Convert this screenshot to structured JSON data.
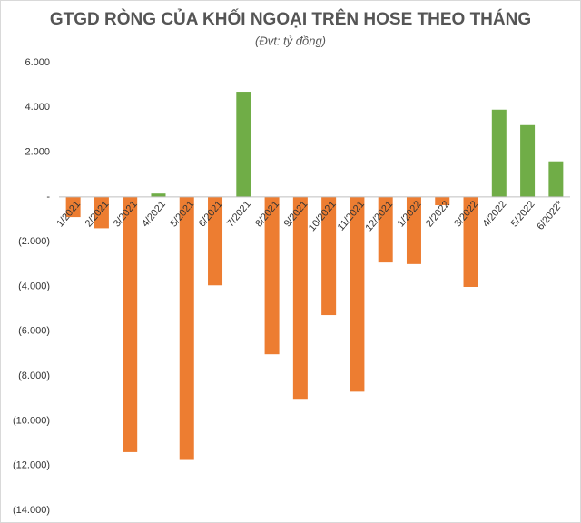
{
  "chart_data": {
    "type": "bar",
    "title": "GTGD RÒNG CỦA KHỐI NGOẠI TRÊN HOSE THEO THÁNG",
    "subtitle": "(Đvt: tỷ đồng)",
    "categories": [
      "1/2021",
      "2/2021",
      "3/2021",
      "4/2021",
      "5/2021",
      "6/2021",
      "7/2021",
      "8/2021",
      "9/2021",
      "10/2021",
      "11/2021",
      "12/2021",
      "1/2022",
      "2/2022",
      "3/2022",
      "4/2022",
      "5/2022",
      "6/2022*"
    ],
    "values": [
      -900,
      -1400,
      -11400,
      150,
      -11750,
      -3950,
      4700,
      -7030,
      -9020,
      -5280,
      -8700,
      -2930,
      -3000,
      -370,
      -4020,
      3900,
      3210,
      1590
    ],
    "colors": [
      "#ed7d31",
      "#ed7d31",
      "#ed7d31",
      "#70ad47",
      "#ed7d31",
      "#ed7d31",
      "#70ad47",
      "#ed7d31",
      "#ed7d31",
      "#ed7d31",
      "#ed7d31",
      "#ed7d31",
      "#ed7d31",
      "#ed7d31",
      "#ed7d31",
      "#70ad47",
      "#70ad47",
      "#70ad47"
    ],
    "ylim": [
      -14000,
      6000
    ],
    "yticks": [
      {
        "value": 6000,
        "label": "6.000"
      },
      {
        "value": 4000,
        "label": "4.000"
      },
      {
        "value": 2000,
        "label": "2.000"
      },
      {
        "value": 0,
        "label": "-"
      },
      {
        "value": -2000,
        "label": "(2.000)"
      },
      {
        "value": -4000,
        "label": "(4.000)"
      },
      {
        "value": -6000,
        "label": "(6.000)"
      },
      {
        "value": -8000,
        "label": "(8.000)"
      },
      {
        "value": -10000,
        "label": "(10.000)"
      },
      {
        "value": -12000,
        "label": "(12.000)"
      },
      {
        "value": -14000,
        "label": "(14.000)"
      }
    ],
    "grid": false
  }
}
